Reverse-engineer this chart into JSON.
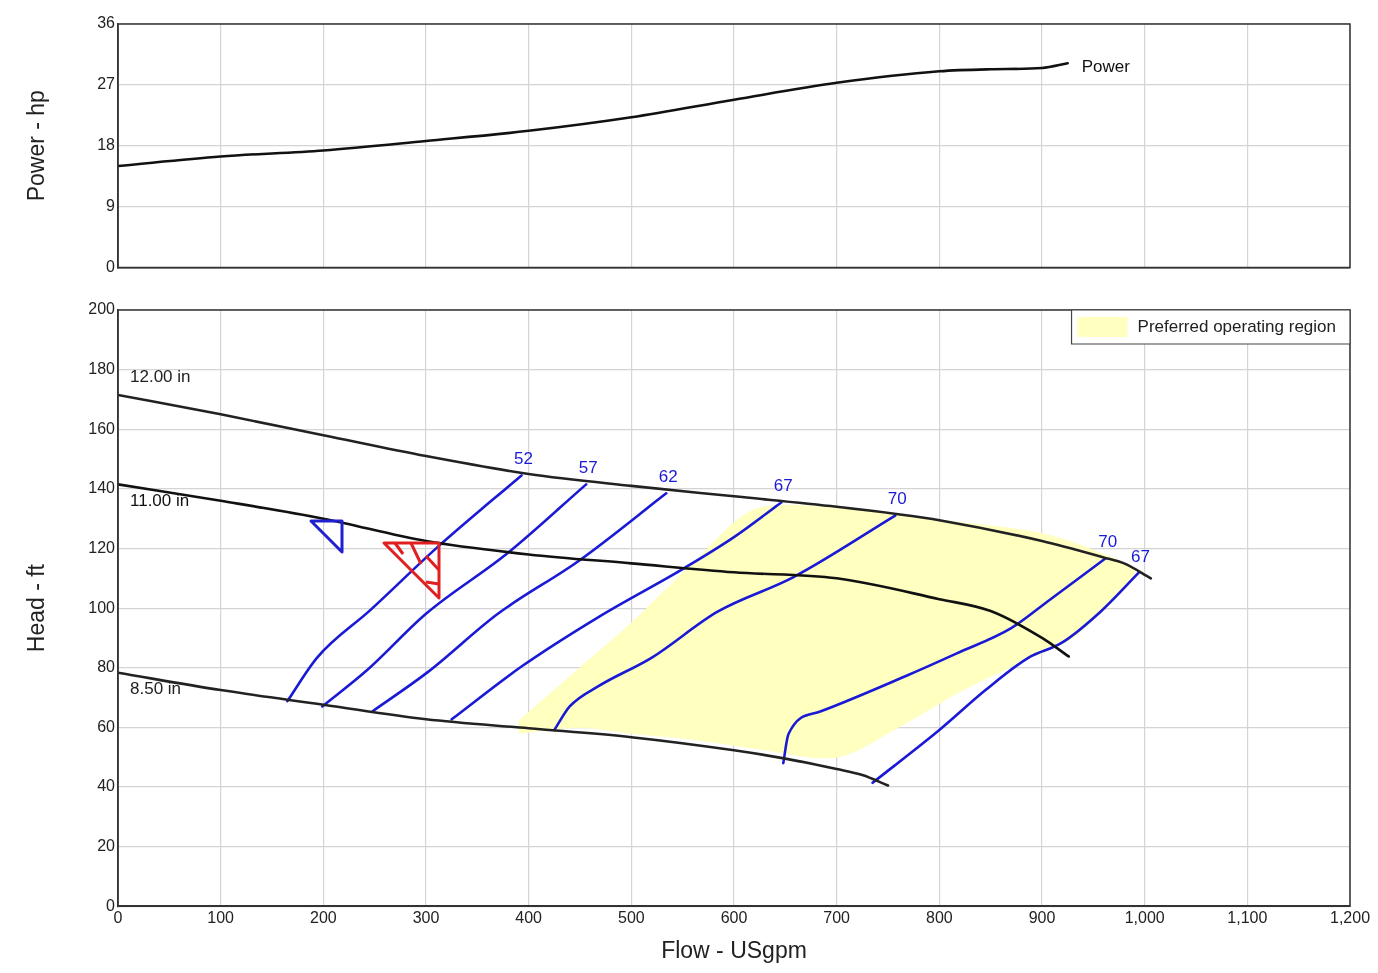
{
  "chart_data": [
    {
      "type": "line",
      "ylabel": "Power - hp",
      "xlim": [
        0,
        1200
      ],
      "xticks": [
        0,
        100,
        200,
        300,
        400,
        500,
        600,
        700,
        800,
        900,
        1000,
        1100,
        1200
      ],
      "ylim": [
        0,
        36
      ],
      "yticks": [
        0,
        9,
        18,
        27,
        36
      ],
      "grid": true,
      "tick_labels": "y",
      "marker": "none",
      "series": [
        {
          "name": "Power",
          "color": "#111111",
          "x": [
            0,
            100,
            200,
            300,
            400,
            500,
            600,
            700,
            800,
            850,
            900,
            925
          ],
          "values": [
            15,
            16.4,
            17.3,
            18.7,
            20.2,
            22.2,
            24.8,
            27.3,
            29,
            29.3,
            29.5,
            30.2
          ]
        }
      ]
    },
    {
      "type": "line",
      "xlabel": "Flow - USgpm",
      "ylabel": "Head - ft",
      "xlim": [
        0,
        1200
      ],
      "xticks": [
        0,
        100,
        200,
        300,
        400,
        500,
        600,
        700,
        800,
        900,
        {
          "value": 1000,
          "label": "1,000"
        },
        {
          "value": 1100,
          "label": "1,100"
        },
        {
          "value": 1200,
          "label": "1,200"
        }
      ],
      "ylim": [
        0,
        200
      ],
      "yticks": [
        0,
        20,
        40,
        60,
        80,
        100,
        120,
        140,
        160,
        180,
        200
      ],
      "grid": true,
      "legend": "top right",
      "marker": "none",
      "series": [
        {
          "type": "area",
          "name": "Preferred operating region",
          "color": "#ffffc0",
          "x": [
            390,
            450,
            500,
            560,
            620,
            700,
            800,
            900,
            960,
            990,
            960,
            930,
            880,
            820,
            760,
            700,
            620,
            560,
            500,
            450,
            390
          ],
          "values": [
            62,
            80,
            95,
            115,
            133,
            133.5,
            129.5,
            125,
            118,
            112,
            100,
            90,
            82,
            72,
            60,
            50,
            53,
            56,
            58,
            60,
            58
          ]
        },
        {
          "name": "12.00 in",
          "color": "#222222",
          "x": [
            0,
            100,
            200,
            300,
            400,
            500,
            600,
            700,
            760,
            800,
            900,
            960,
            980,
            1006
          ],
          "values": [
            171.5,
            165,
            158,
            151,
            145,
            141,
            137.5,
            134,
            131.5,
            129.5,
            122.5,
            117,
            115,
            110
          ]
        },
        {
          "name": "11.00 in",
          "color": "#111111",
          "x": [
            0,
            100,
            200,
            300,
            400,
            500,
            600,
            700,
            800,
            850,
            900,
            926
          ],
          "values": [
            141.5,
            136,
            130,
            122.5,
            118,
            115,
            112,
            110,
            103,
            99,
            90,
            83.8
          ]
        },
        {
          "name": "8.50 in",
          "color": "#222222",
          "x": [
            0,
            100,
            200,
            300,
            400,
            500,
            600,
            650,
            700,
            725,
            750
          ],
          "values": [
            78.3,
            72.5,
            67.6,
            62.7,
            59.7,
            56.7,
            52.3,
            49.5,
            46,
            44,
            40.5
          ]
        },
        {
          "name": "52",
          "color": "#1a1ad6",
          "x": [
            165,
            194,
            246,
            312,
            393
          ],
          "values": [
            68.8,
            83.4,
            99.4,
            120.7,
            144.5
          ]
        },
        {
          "name": "57",
          "color": "#1a1ad6",
          "x": [
            199,
            243,
            300,
            379,
            456
          ],
          "values": [
            67,
            79.3,
            98.1,
            118.3,
            141.5
          ]
        },
        {
          "name": "62",
          "color": "#1a1ad6",
          "x": [
            248,
            302,
            370,
            449,
            534
          ],
          "values": [
            65.4,
            78.6,
            98.1,
            115.9,
            138.5
          ]
        },
        {
          "name": "67",
          "color": "#1a1ad6",
          "x": [
            325,
            393,
            468,
            552,
            600,
            646
          ],
          "values": [
            62.7,
            80.4,
            97,
            113.5,
            123.8,
            135.4
          ]
        },
        {
          "name": "70",
          "color": "#1a1ad6",
          "x": [
            425,
            440,
            468,
            520,
            584,
            658,
            757
          ],
          "values": [
            59.1,
            67,
            73.8,
            83.4,
            98.8,
            110.4,
            131
          ]
        },
        {
          "name": "70",
          "color": "#1a1ad6",
          "x": [
            648,
            653,
            684,
            768,
            817,
            870,
            908,
            962
          ],
          "values": [
            48,
            57.7,
            65.3,
            77.3,
            84.8,
            93.3,
            102.9,
            116.7
          ]
        },
        {
          "name": "67",
          "color": "#1a1ad6",
          "x": [
            735,
            800,
            845,
            887,
            919,
            957,
            994
          ],
          "values": [
            41.4,
            59.1,
            72.5,
            83.4,
            88.3,
            98.8,
            111.8
          ]
        }
      ]
    }
  ]
}
